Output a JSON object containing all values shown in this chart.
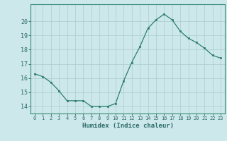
{
  "x": [
    0,
    1,
    2,
    3,
    4,
    5,
    6,
    7,
    8,
    9,
    10,
    11,
    12,
    13,
    14,
    15,
    16,
    17,
    18,
    19,
    20,
    21,
    22,
    23
  ],
  "y": [
    16.3,
    16.1,
    15.7,
    15.1,
    14.4,
    14.4,
    14.4,
    14.0,
    14.0,
    14.0,
    14.2,
    15.8,
    17.1,
    18.2,
    19.5,
    20.1,
    20.5,
    20.1,
    19.3,
    18.8,
    18.5,
    18.1,
    17.6,
    17.4
  ],
  "line_color": "#2e7d6e",
  "marker_color": "#2e7d6e",
  "bg_color": "#cce8ea",
  "grid_color": "#aacccc",
  "xlabel": "Humidex (Indice chaleur)",
  "ylim": [
    13.5,
    21.2
  ],
  "xlim": [
    -0.5,
    23.5
  ],
  "yticks": [
    14,
    15,
    16,
    17,
    18,
    19,
    20
  ],
  "xticks": [
    0,
    1,
    2,
    3,
    4,
    5,
    6,
    7,
    8,
    9,
    10,
    11,
    12,
    13,
    14,
    15,
    16,
    17,
    18,
    19,
    20,
    21,
    22,
    23
  ],
  "font_color": "#2e6b6b",
  "axis_color": "#3a8a7a"
}
